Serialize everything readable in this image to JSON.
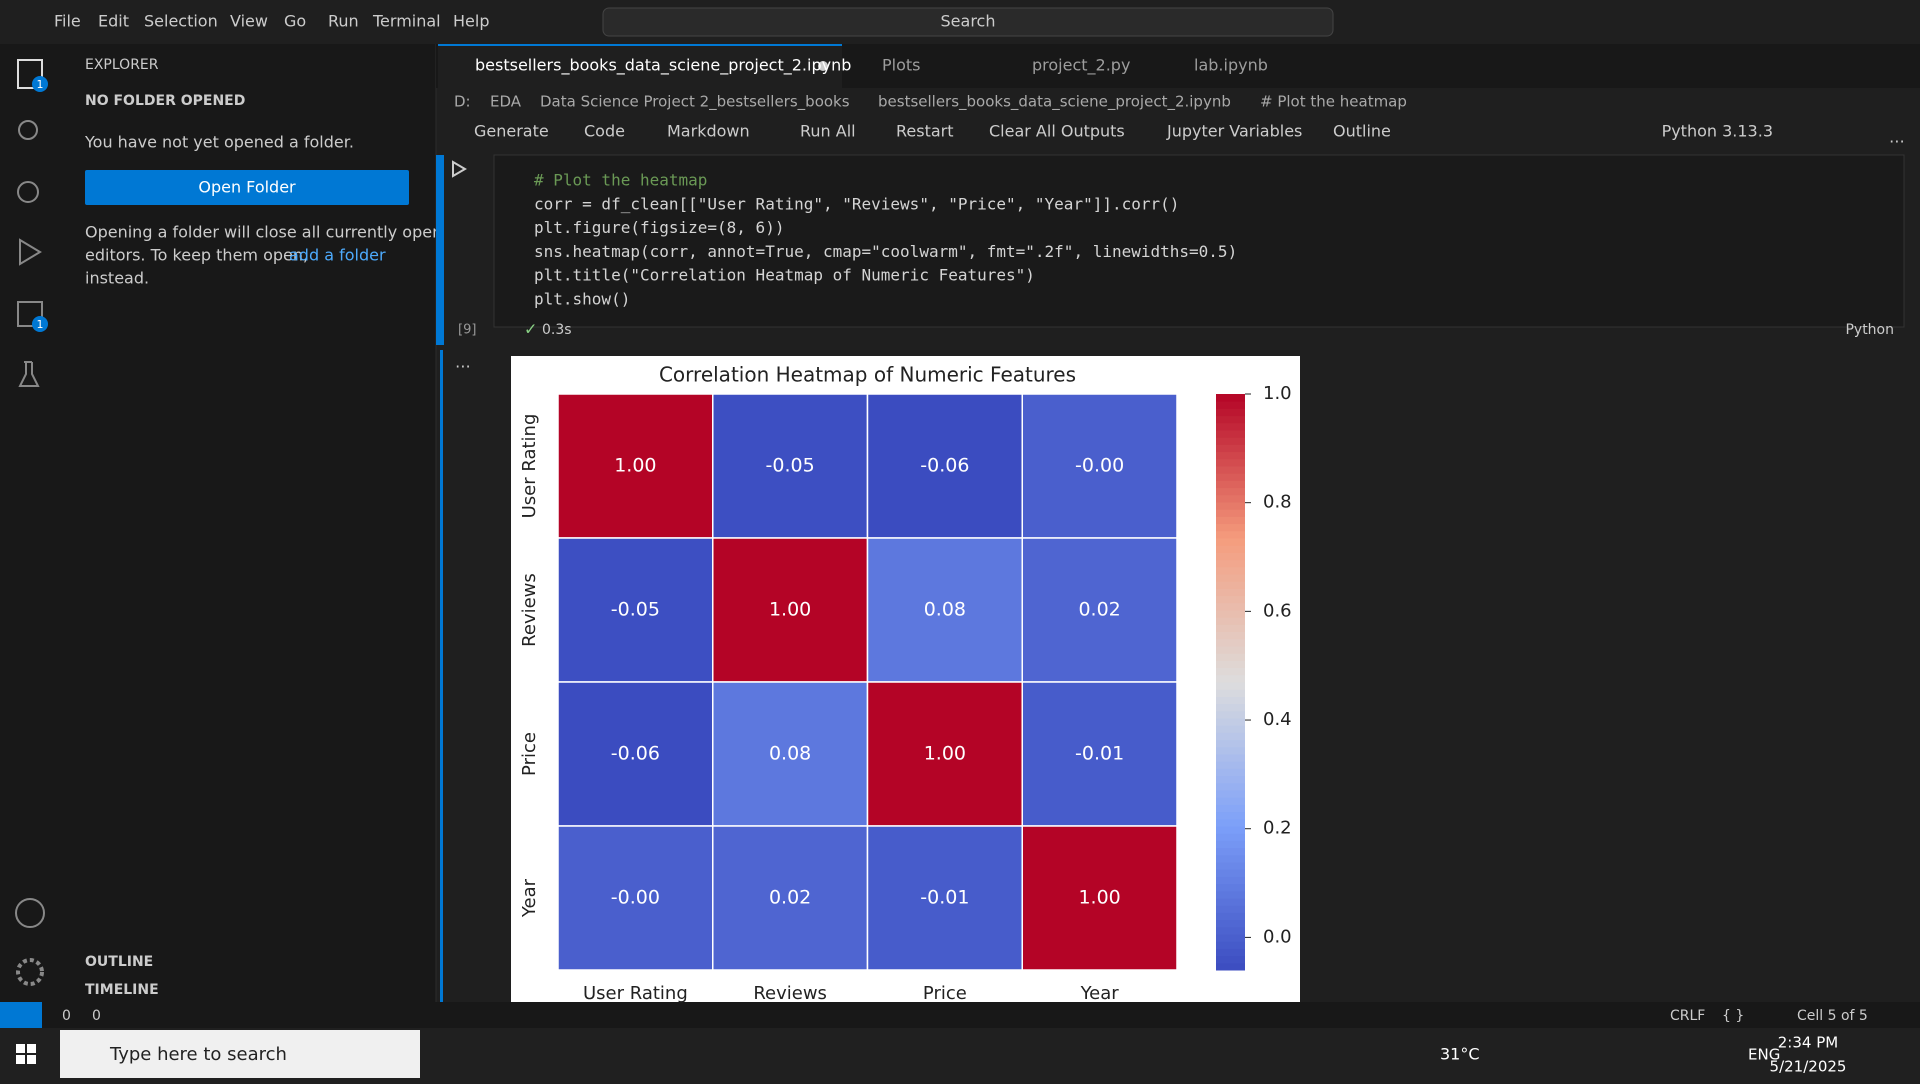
{
  "menu": [
    "File",
    "Edit",
    "Selection",
    "View",
    "Go",
    "Run",
    "Terminal",
    "Help"
  ],
  "search": "Search",
  "activity_badges": [
    "1",
    "1"
  ],
  "explorer": {
    "title": "EXPLORER",
    "section": "NO FOLDER OPENED",
    "message": "You have not yet opened a folder.",
    "button": "Open Folder",
    "note": [
      "Opening a folder will close all currently open",
      "editors. To keep them open,",
      "add a folder",
      "instead."
    ],
    "outline": "OUTLINE",
    "timeline": "TIMELINE"
  },
  "tabs": [
    "bestsellers_books_data_sciene_project_2.ipynb",
    "Plots",
    "project_2.py",
    "lab.ipynb"
  ],
  "breadcrumb": [
    "D:",
    "EDA",
    "Data Science Project 2_bestsellers_books",
    "bestsellers_books_data_sciene_project_2.ipynb",
    "# Plot the heatmap"
  ],
  "toolbar": [
    "Generate",
    "Code",
    "Markdown",
    "Run All",
    "Restart",
    "Clear All Outputs",
    "Jupyter Variables",
    "Outline"
  ],
  "kernel": "Python 3.13.3",
  "cell": {
    "code": [
      "# Plot the heatmap",
      "corr = df_clean[[\"User Rating\", \"Reviews\", \"Price\", \"Year\"]].corr()",
      "plt.figure(figsize=(8, 6))",
      "sns.heatmap(corr, annot=True, cmap=\"coolwarm\", fmt=\".2f\", linewidths=0.5)",
      "plt.title(\"Correlation Heatmap of Numeric Features\")",
      "plt.show()"
    ],
    "execution_count": "[9]",
    "duration": "0.3s",
    "language": "Python"
  },
  "chart_data": {
    "type": "heatmap",
    "title": "Correlation Heatmap of Numeric Features",
    "categories": [
      "User Rating",
      "Reviews",
      "Price",
      "Year"
    ],
    "values": [
      [
        1.0,
        -0.05,
        -0.06,
        -0.0
      ],
      [
        -0.05,
        1.0,
        0.08,
        0.02
      ],
      [
        -0.06,
        0.08,
        1.0,
        -0.01
      ],
      [
        -0.0,
        0.02,
        -0.01,
        1.0
      ]
    ],
    "value_labels": [
      [
        "1.00",
        "-0.05",
        "-0.06",
        "-0.00"
      ],
      [
        "-0.05",
        "1.00",
        "0.08",
        "0.02"
      ],
      [
        "-0.06",
        "0.08",
        "1.00",
        "-0.01"
      ],
      [
        "-0.00",
        "0.02",
        "-0.01",
        "1.00"
      ]
    ],
    "colormap": "coolwarm",
    "zlim": [
      -0.06,
      1
    ],
    "zticks": [
      {
        "value": 0,
        "label": "0.0"
      },
      0.2,
      0.4,
      0.6,
      0.8,
      {
        "value": 1,
        "label": "1.0"
      }
    ]
  },
  "status": {
    "errors": "0",
    "warnings": "0",
    "eol": "CRLF",
    "braces": "{ }",
    "cell": "Cell 5 of 5"
  },
  "taskbar": {
    "search": "Type here to search",
    "weather": "31°C",
    "language": "ENG",
    "time": "2:34 PM",
    "date": "5/21/2025"
  }
}
